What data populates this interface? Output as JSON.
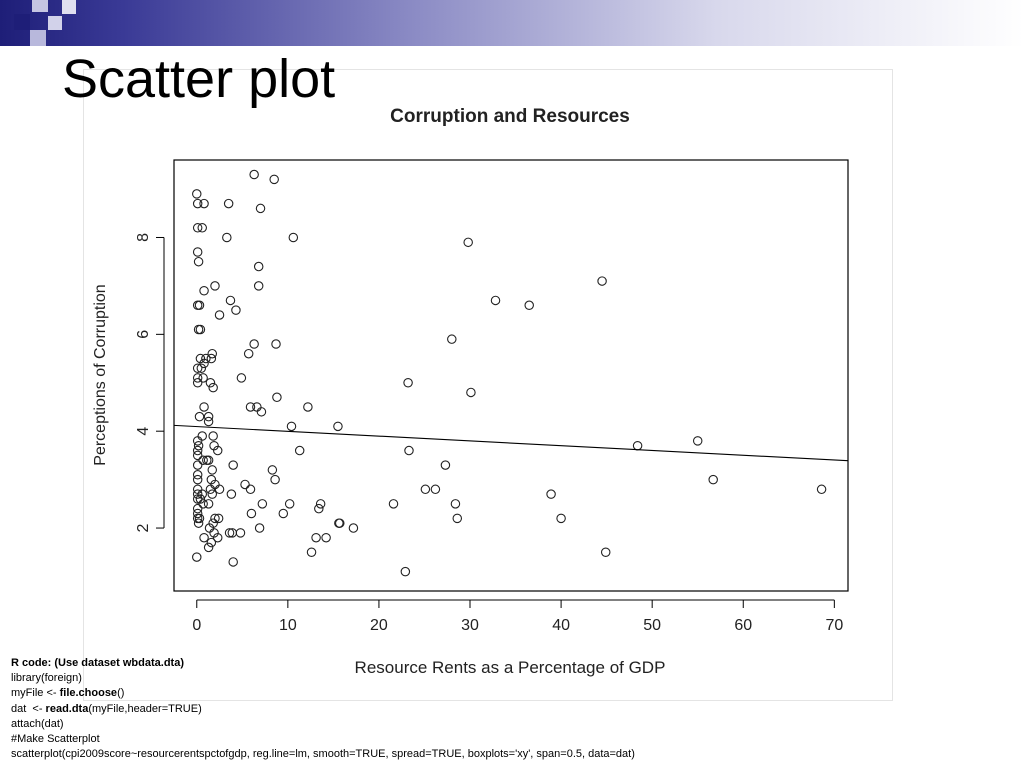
{
  "slide": {
    "title": "Scatter plot"
  },
  "chart_data": {
    "type": "scatter",
    "title": "Corruption and Resources",
    "xlabel": "Resource Rents as a Percentage of GDP",
    "ylabel": "Perceptions of Corruption",
    "xlim": [
      -2.5,
      71.5
    ],
    "ylim": [
      0.7,
      9.6
    ],
    "x_ticks": [
      0,
      10,
      20,
      30,
      40,
      50,
      60,
      70
    ],
    "y_ticks": [
      2,
      4,
      6,
      8
    ],
    "grid": false,
    "regression_line": {
      "x": [
        -2.5,
        71.5
      ],
      "y": [
        4.12,
        3.39
      ]
    },
    "points": [
      {
        "x": 0.0,
        "y": 8.9
      },
      {
        "x": 0.1,
        "y": 8.7
      },
      {
        "x": 0.8,
        "y": 8.7
      },
      {
        "x": 0.1,
        "y": 8.2
      },
      {
        "x": 0.6,
        "y": 8.2
      },
      {
        "x": 0.1,
        "y": 7.7
      },
      {
        "x": 0.2,
        "y": 7.5
      },
      {
        "x": 0.1,
        "y": 6.6
      },
      {
        "x": 0.3,
        "y": 6.6
      },
      {
        "x": 0.2,
        "y": 6.1
      },
      {
        "x": 0.4,
        "y": 6.1
      },
      {
        "x": 0.4,
        "y": 5.5
      },
      {
        "x": 0.8,
        "y": 5.4
      },
      {
        "x": 0.1,
        "y": 5.3
      },
      {
        "x": 0.5,
        "y": 5.3
      },
      {
        "x": 0.1,
        "y": 5.1
      },
      {
        "x": 0.7,
        "y": 5.1
      },
      {
        "x": 0.1,
        "y": 5.0
      },
      {
        "x": 0.8,
        "y": 4.5
      },
      {
        "x": 0.3,
        "y": 4.3
      },
      {
        "x": 1.3,
        "y": 4.3
      },
      {
        "x": 1.3,
        "y": 4.2
      },
      {
        "x": 0.1,
        "y": 3.8
      },
      {
        "x": 0.6,
        "y": 3.9
      },
      {
        "x": 0.2,
        "y": 3.7
      },
      {
        "x": 0.1,
        "y": 3.6
      },
      {
        "x": 0.1,
        "y": 3.5
      },
      {
        "x": 0.7,
        "y": 3.4
      },
      {
        "x": 1.1,
        "y": 3.4
      },
      {
        "x": 0.1,
        "y": 3.3
      },
      {
        "x": 0.1,
        "y": 3.1
      },
      {
        "x": 0.1,
        "y": 3.0
      },
      {
        "x": 0.1,
        "y": 2.8
      },
      {
        "x": 0.1,
        "y": 2.7
      },
      {
        "x": 0.6,
        "y": 2.7
      },
      {
        "x": 0.1,
        "y": 2.6
      },
      {
        "x": 0.4,
        "y": 2.6
      },
      {
        "x": 0.7,
        "y": 2.5
      },
      {
        "x": 0.1,
        "y": 2.4
      },
      {
        "x": 0.1,
        "y": 2.3
      },
      {
        "x": 0.1,
        "y": 2.2
      },
      {
        "x": 0.3,
        "y": 2.2
      },
      {
        "x": 0.2,
        "y": 2.1
      },
      {
        "x": 0.8,
        "y": 1.8
      },
      {
        "x": 0.0,
        "y": 1.4
      },
      {
        "x": 0.8,
        "y": 6.9
      },
      {
        "x": 1.0,
        "y": 5.5
      },
      {
        "x": 1.3,
        "y": 3.4
      },
      {
        "x": 1.5,
        "y": 2.8
      },
      {
        "x": 1.3,
        "y": 2.5
      },
      {
        "x": 1.4,
        "y": 2.0
      },
      {
        "x": 1.3,
        "y": 1.6
      },
      {
        "x": 1.6,
        "y": 5.5
      },
      {
        "x": 1.7,
        "y": 5.6
      },
      {
        "x": 1.5,
        "y": 5.0
      },
      {
        "x": 1.8,
        "y": 4.9
      },
      {
        "x": 1.8,
        "y": 3.9
      },
      {
        "x": 1.9,
        "y": 3.7
      },
      {
        "x": 1.7,
        "y": 3.2
      },
      {
        "x": 1.6,
        "y": 3.0
      },
      {
        "x": 2.0,
        "y": 2.9
      },
      {
        "x": 1.7,
        "y": 2.7
      },
      {
        "x": 2.0,
        "y": 2.2
      },
      {
        "x": 1.8,
        "y": 2.1
      },
      {
        "x": 1.9,
        "y": 1.9
      },
      {
        "x": 1.6,
        "y": 1.7
      },
      {
        "x": 2.0,
        "y": 7.0
      },
      {
        "x": 2.5,
        "y": 6.4
      },
      {
        "x": 2.3,
        "y": 3.6
      },
      {
        "x": 2.5,
        "y": 2.8
      },
      {
        "x": 2.4,
        "y": 2.2
      },
      {
        "x": 2.3,
        "y": 1.8
      },
      {
        "x": 3.3,
        "y": 8.0
      },
      {
        "x": 3.5,
        "y": 8.7
      },
      {
        "x": 3.7,
        "y": 6.7
      },
      {
        "x": 4.3,
        "y": 6.5
      },
      {
        "x": 4.0,
        "y": 3.3
      },
      {
        "x": 3.8,
        "y": 2.7
      },
      {
        "x": 3.6,
        "y": 1.9
      },
      {
        "x": 3.9,
        "y": 1.9
      },
      {
        "x": 4.0,
        "y": 1.3
      },
      {
        "x": 4.9,
        "y": 5.1
      },
      {
        "x": 5.3,
        "y": 2.9
      },
      {
        "x": 4.8,
        "y": 1.9
      },
      {
        "x": 5.7,
        "y": 5.6
      },
      {
        "x": 5.9,
        "y": 4.5
      },
      {
        "x": 5.9,
        "y": 2.8
      },
      {
        "x": 6.0,
        "y": 2.3
      },
      {
        "x": 6.3,
        "y": 9.3
      },
      {
        "x": 6.3,
        "y": 5.8
      },
      {
        "x": 6.6,
        "y": 4.5
      },
      {
        "x": 6.8,
        "y": 7.4
      },
      {
        "x": 6.8,
        "y": 7.0
      },
      {
        "x": 6.9,
        "y": 2.0
      },
      {
        "x": 7.0,
        "y": 8.6
      },
      {
        "x": 7.1,
        "y": 4.4
      },
      {
        "x": 7.2,
        "y": 2.5
      },
      {
        "x": 8.3,
        "y": 3.2
      },
      {
        "x": 8.5,
        "y": 9.2
      },
      {
        "x": 8.7,
        "y": 5.8
      },
      {
        "x": 8.8,
        "y": 4.7
      },
      {
        "x": 8.6,
        "y": 3.0
      },
      {
        "x": 9.5,
        "y": 2.3
      },
      {
        "x": 10.2,
        "y": 2.5
      },
      {
        "x": 10.4,
        "y": 4.1
      },
      {
        "x": 10.6,
        "y": 8.0
      },
      {
        "x": 11.3,
        "y": 3.6
      },
      {
        "x": 12.2,
        "y": 4.5
      },
      {
        "x": 12.6,
        "y": 1.5
      },
      {
        "x": 13.1,
        "y": 1.8
      },
      {
        "x": 13.4,
        "y": 2.4
      },
      {
        "x": 13.6,
        "y": 2.5
      },
      {
        "x": 14.2,
        "y": 1.8
      },
      {
        "x": 15.5,
        "y": 4.1
      },
      {
        "x": 15.6,
        "y": 2.1
      },
      {
        "x": 15.7,
        "y": 2.1
      },
      {
        "x": 17.2,
        "y": 2.0
      },
      {
        "x": 21.6,
        "y": 2.5
      },
      {
        "x": 22.9,
        "y": 1.1
      },
      {
        "x": 23.2,
        "y": 5.0
      },
      {
        "x": 23.3,
        "y": 3.6
      },
      {
        "x": 25.1,
        "y": 2.8
      },
      {
        "x": 26.2,
        "y": 2.8
      },
      {
        "x": 27.3,
        "y": 3.3
      },
      {
        "x": 28.0,
        "y": 5.9
      },
      {
        "x": 28.4,
        "y": 2.5
      },
      {
        "x": 28.6,
        "y": 2.2
      },
      {
        "x": 29.8,
        "y": 7.9
      },
      {
        "x": 30.1,
        "y": 4.8
      },
      {
        "x": 32.8,
        "y": 6.7
      },
      {
        "x": 36.5,
        "y": 6.6
      },
      {
        "x": 38.9,
        "y": 2.7
      },
      {
        "x": 40.0,
        "y": 2.2
      },
      {
        "x": 44.5,
        "y": 7.1
      },
      {
        "x": 44.9,
        "y": 1.5
      },
      {
        "x": 48.4,
        "y": 3.7
      },
      {
        "x": 55.0,
        "y": 3.8
      },
      {
        "x": 56.7,
        "y": 3.0
      },
      {
        "x": 68.6,
        "y": 2.8
      }
    ]
  },
  "code": {
    "lines": [
      [
        {
          "text": "R code: (Use dataset wbdata.dta)",
          "bold": true
        }
      ],
      [
        {
          "text": "library(foreign)",
          "bold": false
        }
      ],
      [
        {
          "text": "myFile <- ",
          "bold": false
        },
        {
          "text": "file.choose",
          "bold": true
        },
        {
          "text": "()",
          "bold": false
        }
      ],
      [
        {
          "text": "dat  <- ",
          "bold": false
        },
        {
          "text": "read.dta",
          "bold": true
        },
        {
          "text": "(myFile,header=TRUE)",
          "bold": false
        }
      ],
      [
        {
          "text": "attach(dat)",
          "bold": false
        }
      ],
      [
        {
          "text": "#Make Scatterplot",
          "bold": false
        }
      ],
      [
        {
          "text": "scatterplot(cpi2009score~resourcerentspctofgdp, reg.line=lm, smooth=TRUE, spread=TRUE, boxplots='xy', span=0.5, data=dat)",
          "bold": false
        }
      ]
    ]
  }
}
